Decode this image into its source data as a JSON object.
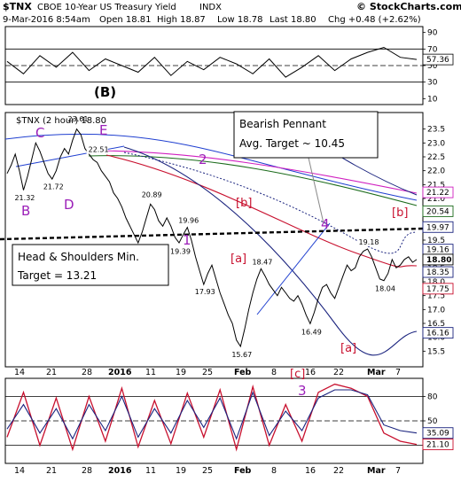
{
  "header": {
    "symbol": "$TNX",
    "name": "CBOE 10-Year US Treasury Yield",
    "exchange": "INDX",
    "datetime": "9-Mar-2016 8:54am",
    "open": "Open 18.81",
    "high": "High 18.87",
    "low": "Low 18.78",
    "last": "Last 18.80",
    "chg": "Chg +0.48 (+2.62%)",
    "copyright": "© StockCharts.com"
  },
  "colors": {
    "price": "#000000",
    "accent_red": "#c8102e",
    "label_purple": "#9b1fb8",
    "ma_navy": "#1a237e",
    "ma_green": "#1b6b1b",
    "ma_magenta": "#d020c0",
    "trend_blue": "#1f3fd0"
  },
  "chart_data": [
    {
      "type": "line",
      "panel": "rsi-top",
      "series": [],
      "y_ticks": [
        90,
        70,
        50,
        30,
        10
      ],
      "x": [
        0,
        4,
        8,
        12,
        16,
        20,
        24,
        28,
        32,
        36,
        40,
        44,
        48,
        52,
        56,
        60,
        64,
        68,
        72,
        76,
        80,
        84,
        88,
        92,
        96,
        100
      ],
      "values": [
        55,
        40,
        62,
        48,
        66,
        44,
        58,
        50,
        42,
        60,
        38,
        55,
        45,
        60,
        52,
        40,
        58,
        36,
        48,
        62,
        44,
        58,
        66,
        72,
        60,
        57.36
      ],
      "reference_lines": [
        70,
        50,
        30
      ],
      "last_value_label": "57.36",
      "ylim": [
        5,
        95
      ]
    },
    {
      "type": "line",
      "panel": "price",
      "legend": "$TNX (2 hour) 18.80",
      "series": [],
      "ylim": [
        15.0,
        24.0
      ],
      "y_ticks": [
        23.5,
        23.0,
        22.5,
        22.0,
        21.5,
        21.0,
        20.5,
        20.0,
        19.5,
        19.0,
        18.5,
        18.0,
        17.5,
        17.0,
        16.5,
        16.0,
        15.5
      ],
      "x_ticks": [
        "14",
        "21",
        "28",
        "2016",
        "11",
        "19",
        "25",
        "Feb",
        "8",
        "16",
        "22",
        "Mar",
        "7"
      ],
      "price_labels": [
        "23.61",
        "22.51",
        "21.32",
        "21.72",
        "20.89",
        "19.39",
        "19.96",
        "18.47",
        "17.93",
        "15.67",
        "16.49",
        "18.04",
        "19.18"
      ],
      "right_labels": [
        "21.22",
        "20.54",
        "19.97",
        "19.16",
        "18.80",
        "18.35",
        "17.75",
        "16.16"
      ],
      "x": [
        0,
        1,
        2,
        3,
        4,
        5,
        6,
        7,
        8,
        9,
        10,
        11,
        12,
        13,
        14,
        15,
        16,
        17,
        18,
        19,
        20,
        21,
        22,
        23,
        24,
        25,
        26,
        27,
        28,
        29,
        30,
        31,
        32,
        33,
        34,
        35,
        36,
        37,
        38,
        39,
        40,
        41,
        42,
        43,
        44,
        45,
        46,
        47,
        48,
        49,
        50,
        51,
        52,
        53,
        54,
        55,
        56,
        57,
        58,
        59,
        60,
        61,
        62,
        63,
        64,
        65,
        66,
        67,
        68,
        69,
        70,
        71,
        72,
        73,
        74,
        75,
        76,
        77,
        78,
        79,
        80,
        81,
        82,
        83,
        84,
        85,
        86,
        87,
        88,
        89,
        90,
        91,
        92,
        93,
        94,
        95,
        96,
        97,
        98,
        99,
        100
      ],
      "values": [
        21.9,
        22.2,
        22.6,
        22.0,
        21.3,
        21.8,
        22.4,
        23.0,
        22.7,
        22.3,
        21.9,
        21.7,
        22.0,
        22.5,
        22.8,
        22.6,
        23.1,
        23.5,
        23.3,
        22.8,
        22.6,
        22.4,
        22.3,
        22.0,
        21.8,
        21.6,
        21.2,
        21.0,
        20.7,
        20.3,
        20.0,
        19.7,
        19.4,
        19.8,
        20.3,
        20.8,
        20.6,
        20.2,
        20.0,
        20.3,
        20.0,
        19.6,
        19.4,
        19.7,
        19.96,
        19.5,
        18.9,
        18.4,
        17.9,
        18.3,
        18.6,
        18.1,
        17.6,
        17.2,
        16.8,
        16.5,
        15.9,
        15.67,
        16.3,
        17.0,
        17.6,
        18.1,
        18.47,
        18.2,
        17.9,
        17.7,
        17.5,
        17.8,
        17.6,
        17.4,
        17.3,
        17.5,
        17.2,
        16.8,
        16.49,
        16.9,
        17.4,
        17.8,
        17.9,
        17.6,
        17.4,
        17.8,
        18.2,
        18.6,
        18.4,
        18.5,
        18.9,
        19.1,
        19.18,
        18.9,
        18.5,
        18.1,
        18.04,
        18.3,
        18.8,
        18.5,
        18.6,
        18.8,
        18.9,
        18.7,
        18.8
      ]
    },
    {
      "type": "line",
      "panel": "stoch-bottom",
      "series": [],
      "y_ticks": [
        80,
        50,
        20
      ],
      "reference_lines": [
        80,
        50,
        20
      ],
      "x": [
        0,
        4,
        8,
        12,
        16,
        20,
        24,
        28,
        32,
        36,
        40,
        44,
        48,
        52,
        56,
        60,
        64,
        68,
        72,
        76,
        80,
        84,
        88,
        92,
        96,
        100
      ],
      "values": [
        30,
        85,
        20,
        78,
        15,
        80,
        25,
        90,
        18,
        75,
        22,
        84,
        30,
        88,
        15,
        92,
        20,
        70,
        25,
        85,
        95,
        90,
        80,
        35,
        25,
        21.1
      ],
      "values2": [
        40,
        70,
        35,
        65,
        28,
        70,
        38,
        80,
        30,
        65,
        35,
        75,
        42,
        78,
        28,
        85,
        32,
        62,
        38,
        78,
        88,
        88,
        82,
        45,
        38,
        35.09
      ],
      "last_value_labels": [
        "35.09",
        "21.10"
      ],
      "ylim": [
        0,
        100
      ]
    }
  ],
  "annotations": {
    "wave_B_big": "(B)",
    "wave_C": "C",
    "wave_E": "E",
    "wave_B": "B",
    "wave_D": "D",
    "wave_2": "2",
    "wave_1": "1",
    "wave_4": "4",
    "wave_3": "3",
    "b_bracket_1": "[b]",
    "b_bracket_2": "[b]",
    "a_bracket_1": "[a]",
    "a_bracket_2": "[a]",
    "c_bracket": "[c]",
    "pennant_line1": "Bearish Pennant",
    "pennant_line2": "Avg. Target ~ 10.45",
    "hs_line1": "Head & Shoulders Min.",
    "hs_line2": "Target = 13.21"
  }
}
